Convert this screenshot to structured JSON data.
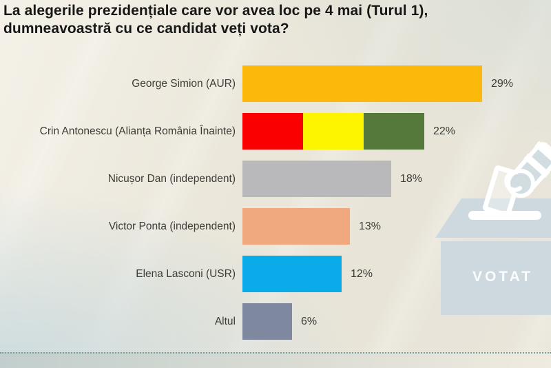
{
  "title": {
    "text": "La alegerile prezidențiale care vor avea loc pe 4 mai (Turul 1), dumneavoastră cu ce candidat veți vota?"
  },
  "chart_data": {
    "type": "bar",
    "orientation": "horizontal",
    "title": "La alegerile prezidențiale care vor avea loc pe 4 mai (Turul 1), dumneavoastră cu ce candidat veți vota?",
    "unit": "%",
    "categories": [
      "George Simion (AUR)",
      "Crin Antonescu (Alianța România Înainte)",
      "Nicușor Dan (independent)",
      "Victor Ponta (independent)",
      "Elena Lasconi (USR)",
      "Altul"
    ],
    "values": [
      29,
      22,
      18,
      13,
      12,
      6
    ],
    "xlim": [
      0,
      30
    ],
    "grid": false,
    "legend": false,
    "bars": [
      {
        "label": "George Simion (AUR)",
        "value": 29,
        "value_label": "29%",
        "segment_colors": [
          "#fcb90b"
        ]
      },
      {
        "label": "Crin Antonescu (Alianța România Înainte)",
        "value": 22,
        "value_label": "22%",
        "segment_colors": [
          "#fb0000",
          "#fdf400",
          "#55793b"
        ]
      },
      {
        "label": "Nicușor Dan (independent)",
        "value": 18,
        "value_label": "18%",
        "segment_colors": [
          "#b9b9bb"
        ]
      },
      {
        "label": "Victor Ponta (independent)",
        "value": 13,
        "value_label": "13%",
        "segment_colors": [
          "#f0a97e"
        ]
      },
      {
        "label": "Elena Lasconi (USR)",
        "value": 12,
        "value_label": "12%",
        "segment_colors": [
          "#09ace8"
        ]
      },
      {
        "label": "Altul",
        "value": 6,
        "value_label": "6%",
        "segment_colors": [
          "#7e89a0"
        ]
      }
    ]
  },
  "illustration": {
    "name": "ballot-box",
    "label": "VOTAT",
    "box_color": "#cdd9df",
    "hand_color": "#d2dde1",
    "outline_color": "#ffffff"
  },
  "colors": {
    "background": "#eae6da",
    "title_text": "#171717",
    "label_text": "#3d3b36",
    "divider_dotted": "#74a09c"
  }
}
